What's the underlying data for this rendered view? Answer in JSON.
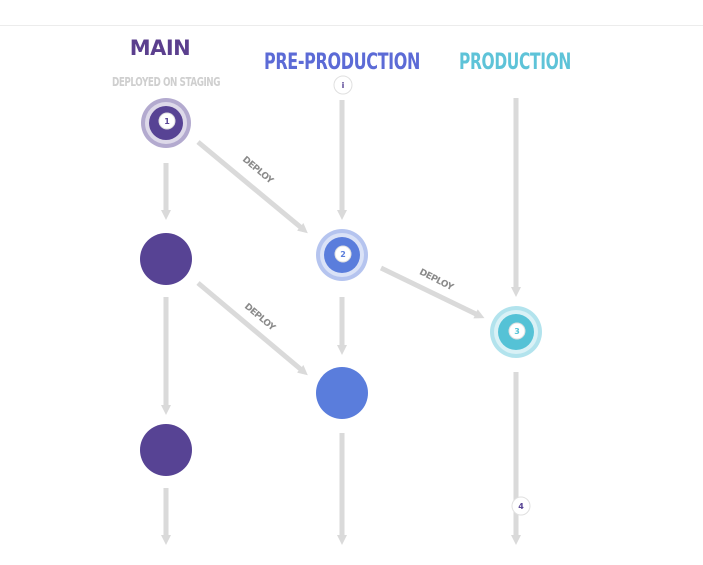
{
  "columns": {
    "main": {
      "title": "MAIN",
      "color": "#5b3f8e"
    },
    "preprod": {
      "title": "PRE-PRODUCTION",
      "color": "#5c6bd6"
    },
    "prod": {
      "title": "PRODUCTION",
      "color": "#5ec3d8"
    }
  },
  "subtitle": "DEPLOYED ON STAGING",
  "deploy_labels": [
    "DEPLOY",
    "DEPLOY",
    "DEPLOY"
  ],
  "markers": {
    "m1": "1",
    "m2": "2",
    "m3": "3",
    "m4": "4",
    "info": "i"
  },
  "colors": {
    "main_node": "#574394",
    "preprod_node": "#5a7ddc",
    "prod_node": "#55c2d6",
    "arrow": "#dadada",
    "title_grey": "#cfcfcf"
  }
}
